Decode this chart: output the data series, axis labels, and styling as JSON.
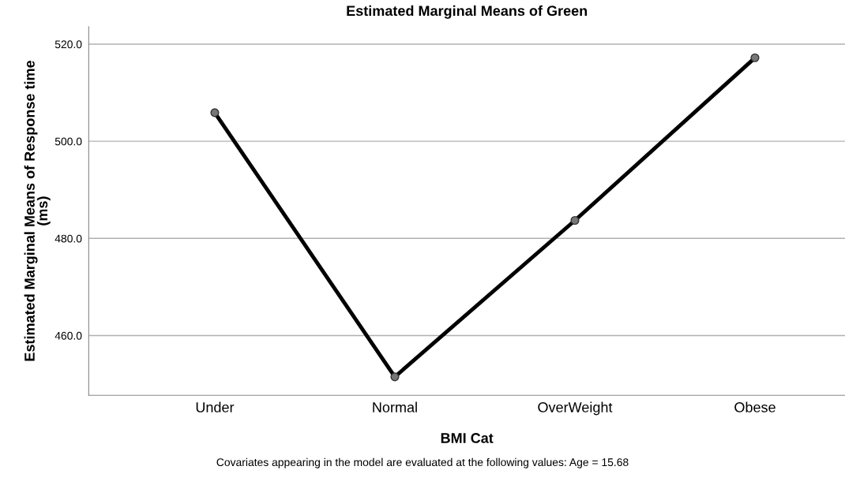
{
  "chart_data": {
    "type": "line",
    "title": "Estimated Marginal Means of Green",
    "xlabel": "BMI Cat",
    "ylabel": "Estimated Marginal Means of Response time\n(ms)",
    "categories": [
      "Under",
      "Normal",
      "OverWeight",
      "Obese"
    ],
    "series": [
      {
        "color": "#000000",
        "values": [
          505.9,
          451.5,
          483.7,
          517.2
        ]
      }
    ],
    "ylim": [
      447.7,
      523.6
    ],
    "yticks": [
      {
        "value": 460,
        "label": "460.0"
      },
      {
        "value": 480,
        "label": "480.0"
      },
      {
        "value": 500,
        "label": "500.0"
      },
      {
        "value": 520,
        "label": "520.0"
      }
    ],
    "grid": "y",
    "marker": "circle",
    "line_style": "solid",
    "annotations": [
      "Covariates appearing in the model are evaluated at the following values: Age = 15.68"
    ]
  }
}
